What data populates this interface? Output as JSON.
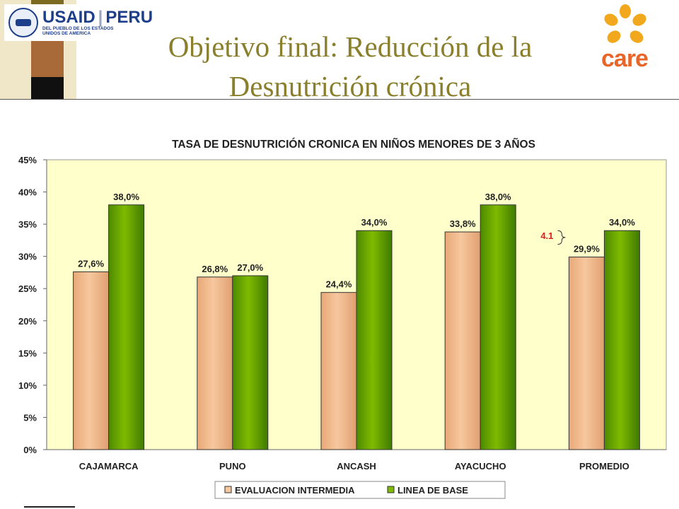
{
  "slide": {
    "title_line1": "Objetivo final: Reducción de la",
    "title_line2": "Desnutrición crónica"
  },
  "logos": {
    "usaid_name": "USAID",
    "usaid_country": "PERU",
    "usaid_tagline": "DEL PUEBLO DE LOS ESTADOS UNIDOS DE AMERICA",
    "care_name": "care"
  },
  "colors": {
    "title": "#8a7f2c",
    "plot_bg": "#ffffcc",
    "series1": "#f7c79e",
    "series2": "#7fba00",
    "annotation": "#e02020"
  },
  "chart_data": {
    "type": "bar",
    "title": "TASA DE DESNUTRICIÓN CRONICA EN NIÑOS MENORES DE 3 AÑOS",
    "categories": [
      "CAJAMARCA",
      "PUNO",
      "ANCASH",
      "AYACUCHO",
      "PROMEDIO"
    ],
    "series": [
      {
        "name": "EVALUACION INTERMEDIA",
        "values": [
          27.6,
          26.8,
          24.4,
          33.8,
          29.9
        ],
        "labels": [
          "27,6%",
          "26,8%",
          "24,4%",
          "33,8%",
          "29,9%"
        ]
      },
      {
        "name": "LINEA DE BASE",
        "values": [
          38.0,
          27.0,
          34.0,
          38.0,
          34.0
        ],
        "labels": [
          "38,0%",
          "27,0%",
          "34,0%",
          "38,0%",
          "34,0%"
        ]
      }
    ],
    "yticks": [
      "0%",
      "5%",
      "10%",
      "15%",
      "20%",
      "25%",
      "30%",
      "35%",
      "40%",
      "45%"
    ],
    "ylim": [
      0,
      45
    ],
    "grid": false,
    "legend": "bottom",
    "annotation": {
      "text": "4.1",
      "category": "PROMEDIO"
    }
  }
}
